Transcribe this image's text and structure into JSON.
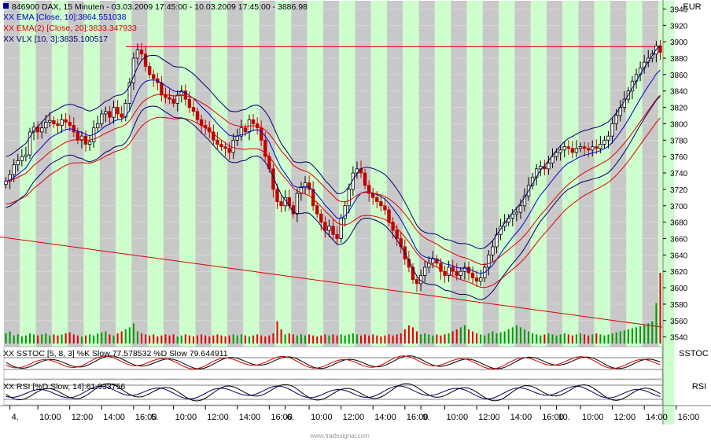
{
  "header": {
    "main_legend": "846900  DAX, 15 Minuten - 03.03.2009 17:45:00 - 10.03.2009 17:45:00 - 3886.98",
    "ema10_legend": "XX EMA [Close, 10]:3864.551038",
    "ema20_legend": "XX EMA(2) [Close, 20]:3833.347933",
    "vlx_legend": "XX VLX [10, 3]:3835.100517",
    "currency": "EUR"
  },
  "panels": {
    "sstoc_legend": "XX SSTOC [5, 8, 3] %K Slow 77.578532 %D Slow 79.644911",
    "sstoc_label": "SSTOC",
    "rsi_legend": "XX RSI [%D Slow, 14]:61.933756",
    "rsi_label": "RSI"
  },
  "watermark": "www.tradesignal.com",
  "colors": {
    "candle_up": "#000000",
    "candle_down": "#c00000",
    "ema10": "#0000cc",
    "ema20": "#dd0000",
    "vlx": "#000066",
    "session_band": "#ccffcc",
    "gap_band": "#c8c8c8",
    "volume_up": "#009900",
    "volume_down": "#dd0000"
  },
  "chart_data": {
    "type": "candlestick",
    "yaxis": {
      "unit": "EUR",
      "ticks": [
        3540,
        3560,
        3580,
        3600,
        3620,
        3640,
        3660,
        3680,
        3700,
        3720,
        3740,
        3760,
        3780,
        3800,
        3820,
        3840,
        3860,
        3880,
        3900,
        3920,
        3940
      ],
      "range": [
        3532,
        3950
      ]
    },
    "xaxis": {
      "labels": [
        {
          "text": "4.",
          "bar": 1
        },
        {
          "text": "10:00",
          "bar": 8
        },
        {
          "text": "12:00",
          "bar": 16
        },
        {
          "text": "14:00",
          "bar": 24
        },
        {
          "text": "16:00",
          "bar": 32
        },
        {
          "text": "5.",
          "bar": 36
        },
        {
          "text": "10:00",
          "bar": 42
        },
        {
          "text": "12:00",
          "bar": 50
        },
        {
          "text": "14:00",
          "bar": 58
        },
        {
          "text": "16:00",
          "bar": 66
        },
        {
          "text": "6.",
          "bar": 70
        },
        {
          "text": "10:00",
          "bar": 76
        },
        {
          "text": "12:00",
          "bar": 84
        },
        {
          "text": "14:00",
          "bar": 92
        },
        {
          "text": "16:00",
          "bar": 100
        },
        {
          "text": "9.",
          "bar": 104
        },
        {
          "text": "10:00",
          "bar": 110
        },
        {
          "text": "12:00",
          "bar": 118
        },
        {
          "text": "14:00",
          "bar": 126
        },
        {
          "text": "16:00",
          "bar": 134
        },
        {
          "text": "10.",
          "bar": 138
        },
        {
          "text": "10:00",
          "bar": 144
        },
        {
          "text": "12:00",
          "bar": 152
        },
        {
          "text": "14:00",
          "bar": 160
        },
        {
          "text": "16:00",
          "bar": 168
        }
      ]
    },
    "close": [
      3730,
      3738,
      3750,
      3755,
      3760,
      3762,
      3790,
      3796,
      3790,
      3795,
      3802,
      3804,
      3800,
      3798,
      3805,
      3802,
      3798,
      3790,
      3780,
      3785,
      3775,
      3778,
      3795,
      3800,
      3812,
      3815,
      3808,
      3820,
      3812,
      3808,
      3825,
      3850,
      3880,
      3890,
      3885,
      3870,
      3860,
      3855,
      3850,
      3835,
      3832,
      3830,
      3825,
      3835,
      3840,
      3830,
      3820,
      3815,
      3805,
      3798,
      3795,
      3790,
      3780,
      3775,
      3772,
      3770,
      3765,
      3780,
      3785,
      3795,
      3790,
      3805,
      3800,
      3795,
      3780,
      3760,
      3745,
      3720,
      3705,
      3700,
      3710,
      3700,
      3690,
      3715,
      3722,
      3728,
      3720,
      3700,
      3690,
      3680,
      3670,
      3675,
      3665,
      3660,
      3685,
      3700,
      3720,
      3740,
      3745,
      3740,
      3725,
      3715,
      3710,
      3705,
      3700,
      3695,
      3680,
      3670,
      3660,
      3650,
      3635,
      3625,
      3610,
      3605,
      3615,
      3625,
      3630,
      3635,
      3630,
      3620,
      3615,
      3625,
      3620,
      3615,
      3620,
      3625,
      3618,
      3612,
      3608,
      3612,
      3625,
      3640,
      3650,
      3665,
      3675,
      3680,
      3685,
      3690,
      3692,
      3700,
      3712,
      3725,
      3735,
      3745,
      3748,
      3745,
      3752,
      3760,
      3765,
      3768,
      3772,
      3770,
      3765,
      3770,
      3772,
      3770,
      3768,
      3772,
      3770,
      3775,
      3780,
      3785,
      3800,
      3810,
      3820,
      3830,
      3840,
      3852,
      3860,
      3868,
      3875,
      3880,
      3885,
      3895,
      3887
    ],
    "volume": [
      10,
      12,
      8,
      9,
      7,
      8,
      10,
      9,
      8,
      9,
      10,
      8,
      9,
      8,
      9,
      10,
      11,
      9,
      8,
      7,
      8,
      9,
      8,
      10,
      11,
      12,
      9,
      8,
      10,
      12,
      14,
      16,
      20,
      12,
      10,
      9,
      8,
      9,
      7,
      8,
      9,
      8,
      9,
      7,
      8,
      9,
      8,
      7,
      8,
      9,
      8,
      7,
      8,
      9,
      8,
      7,
      8,
      9,
      8,
      9,
      8,
      7,
      8,
      9,
      8,
      7,
      8,
      10,
      22,
      14,
      9,
      10,
      9,
      8,
      9,
      8,
      9,
      8,
      7,
      8,
      9,
      8,
      9,
      8,
      9,
      8,
      9,
      10,
      9,
      8,
      9,
      8,
      9,
      8,
      7,
      8,
      9,
      8,
      9,
      10,
      14,
      18,
      16,
      12,
      9,
      10,
      9,
      8,
      9,
      8,
      9,
      10,
      12,
      14,
      16,
      18,
      14,
      12,
      10,
      9,
      8,
      10,
      12,
      10,
      11,
      12,
      14,
      16,
      18,
      16,
      14,
      12,
      10,
      9,
      8,
      9,
      10,
      9,
      8,
      9,
      10,
      9,
      8,
      9,
      10,
      9,
      8,
      9,
      10,
      9,
      8,
      9,
      10,
      11,
      12,
      13,
      14,
      15,
      16,
      17,
      18,
      20,
      22,
      40,
      70
    ]
  }
}
